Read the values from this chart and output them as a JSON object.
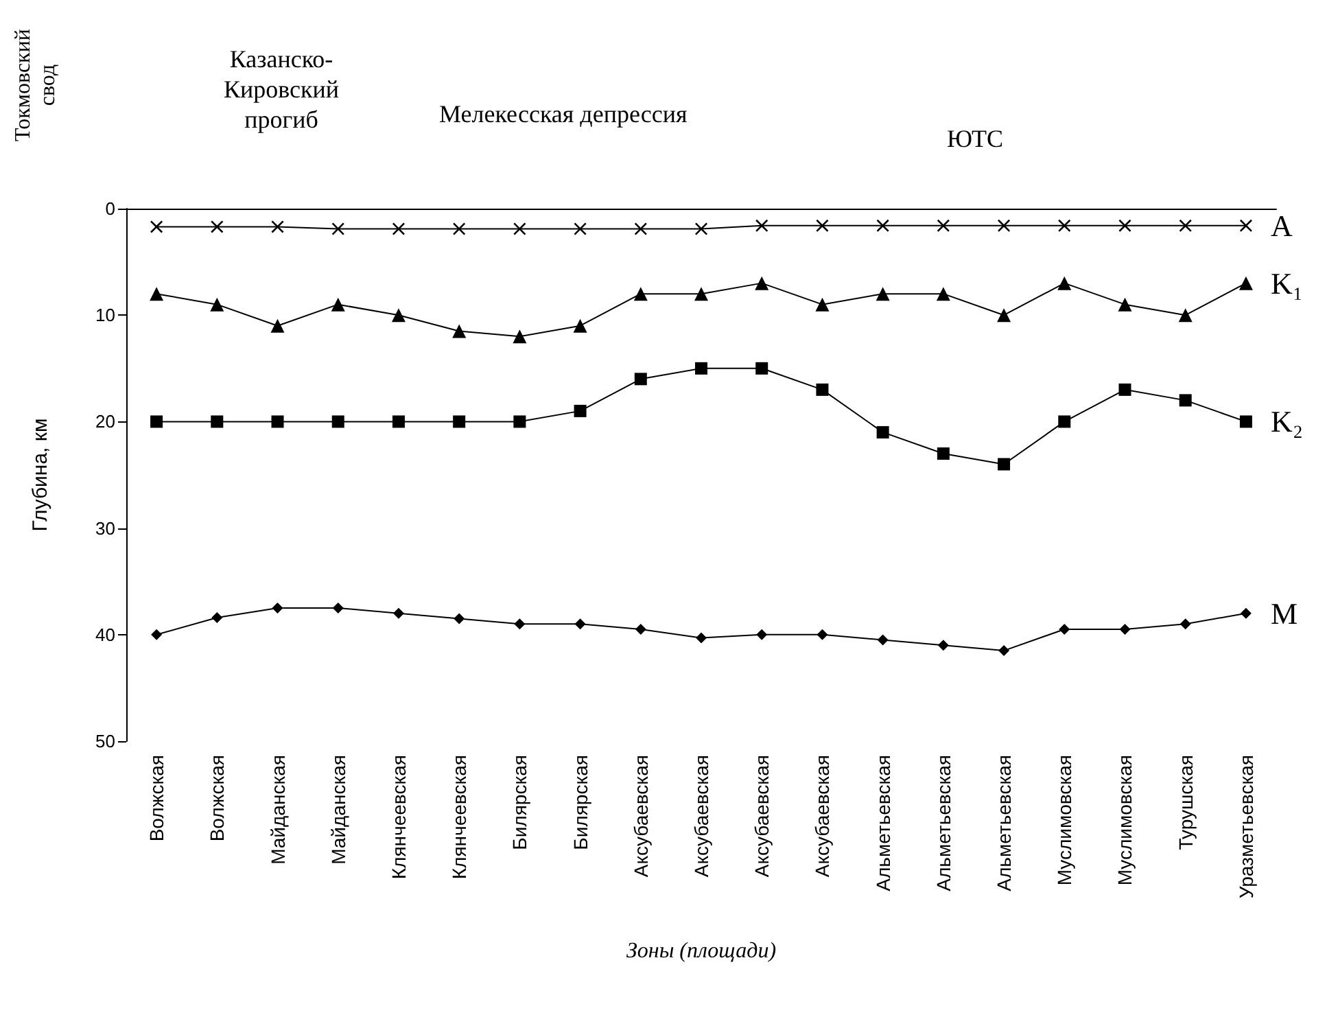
{
  "chart_data": {
    "type": "line",
    "xlabel": "Зоны (площади)",
    "ylabel": "Глубина, км",
    "categories": [
      "Волжская",
      "Волжская",
      "Майданская",
      "Майданская",
      "Клянчеевская",
      "Клянчеевская",
      "Билярская",
      "Билярская",
      "Аксубаевская",
      "Аксубаевская",
      "Аксубаевская",
      "Аксубаевская",
      "Альметьевская",
      "Альметьевская",
      "Альметьевская",
      "Муслимовская",
      "Муслимовская",
      "Турушская",
      "Уразметьевская"
    ],
    "series": [
      {
        "name": "A",
        "color": "#000000",
        "marker": "cross",
        "values": [
          1.7,
          1.7,
          1.7,
          1.9,
          1.9,
          1.9,
          1.9,
          1.9,
          1.9,
          1.9,
          1.6,
          1.6,
          1.6,
          1.6,
          1.6,
          1.6,
          1.6,
          1.6,
          1.6
        ]
      },
      {
        "name": "K₁",
        "color": "#000000",
        "marker": "triangle",
        "values": [
          8,
          9,
          11,
          9,
          10,
          11.5,
          12,
          11,
          8,
          8,
          7,
          9,
          8,
          8,
          10,
          7,
          9,
          10,
          7
        ]
      },
      {
        "name": "K₂",
        "color": "#000000",
        "marker": "square",
        "values": [
          20,
          20,
          20,
          20,
          20,
          20,
          20,
          19,
          16,
          15,
          15,
          17,
          21,
          23,
          24,
          20,
          17,
          18,
          20
        ]
      },
      {
        "name": "M",
        "color": "#000000",
        "marker": "diamond",
        "values": [
          40,
          38.4,
          37.5,
          37.5,
          38,
          38.5,
          39,
          39,
          39.5,
          40.3,
          40,
          40,
          40.5,
          41,
          41.5,
          39.5,
          39.5,
          39,
          38
        ]
      }
    ],
    "ylim": [
      50,
      0
    ],
    "yticks": [
      0,
      10,
      20,
      30,
      40,
      50
    ],
    "grid": false,
    "legend": false,
    "line_style": "solid",
    "annotations": [
      "Токмовский свод",
      "Казанско-Кировский прогиб",
      "Мелекесская депрессия",
      "ЮТС"
    ]
  }
}
